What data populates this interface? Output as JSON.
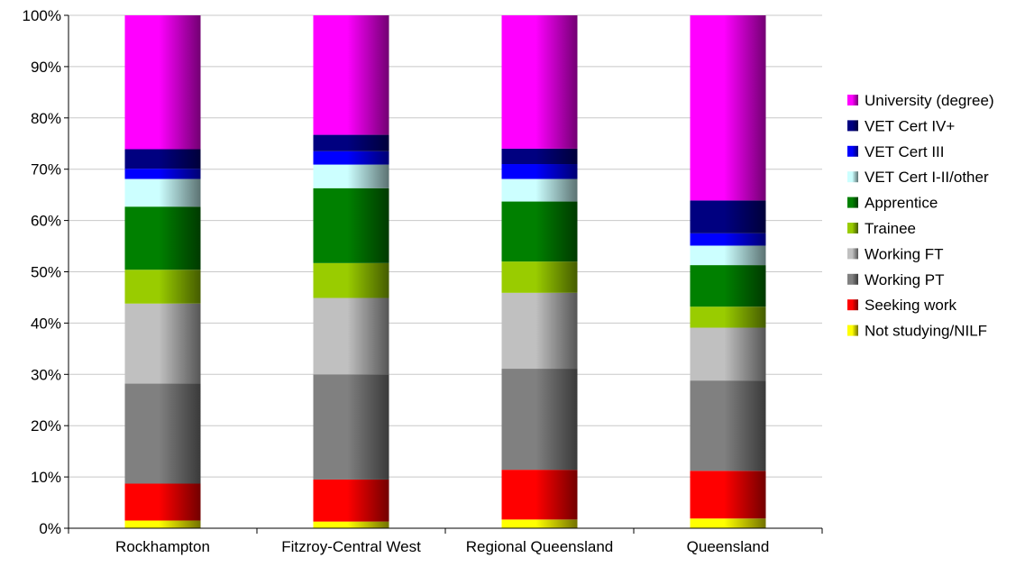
{
  "chart_data": {
    "type": "bar",
    "stacked": true,
    "percent": true,
    "categories": [
      "Rockhampton",
      "Fitzroy-Central West",
      "Regional Queensland",
      "Queensland"
    ],
    "ylim": [
      0,
      100
    ],
    "yticks": [
      "0%",
      "10%",
      "20%",
      "30%",
      "40%",
      "50%",
      "60%",
      "70%",
      "80%",
      "90%",
      "100%"
    ],
    "grid": true,
    "legend_position": "right",
    "series": [
      {
        "name": "Not studying/NILF",
        "color": "#ffff00",
        "values": [
          1.5,
          1.3,
          1.7,
          1.9
        ]
      },
      {
        "name": "Seeking work",
        "color": "#ff0000",
        "values": [
          7.2,
          8.2,
          9.7,
          9.3
        ]
      },
      {
        "name": "Working PT",
        "color": "#808080",
        "values": [
          19.5,
          20.5,
          19.7,
          17.6
        ]
      },
      {
        "name": "Working FT",
        "color": "#c0c0c0",
        "values": [
          15.6,
          14.9,
          14.8,
          10.3
        ]
      },
      {
        "name": "Trainee",
        "color": "#99cc00",
        "values": [
          6.6,
          6.8,
          6.1,
          4.1
        ]
      },
      {
        "name": "Apprentice",
        "color": "#008000",
        "values": [
          12.3,
          14.6,
          11.7,
          8.1
        ]
      },
      {
        "name": "VET Cert I-II/other",
        "color": "#ccffff",
        "values": [
          5.4,
          4.6,
          4.4,
          3.8
        ]
      },
      {
        "name": "VET Cert III",
        "color": "#0000ff",
        "values": [
          2.0,
          2.6,
          2.9,
          2.4
        ]
      },
      {
        "name": "VET Cert IV+",
        "color": "#000080",
        "values": [
          3.8,
          3.2,
          3.0,
          6.4
        ]
      },
      {
        "name": "University (degree)",
        "color": "#ff00ff",
        "values": [
          26.1,
          23.3,
          26.0,
          36.1
        ]
      }
    ]
  }
}
